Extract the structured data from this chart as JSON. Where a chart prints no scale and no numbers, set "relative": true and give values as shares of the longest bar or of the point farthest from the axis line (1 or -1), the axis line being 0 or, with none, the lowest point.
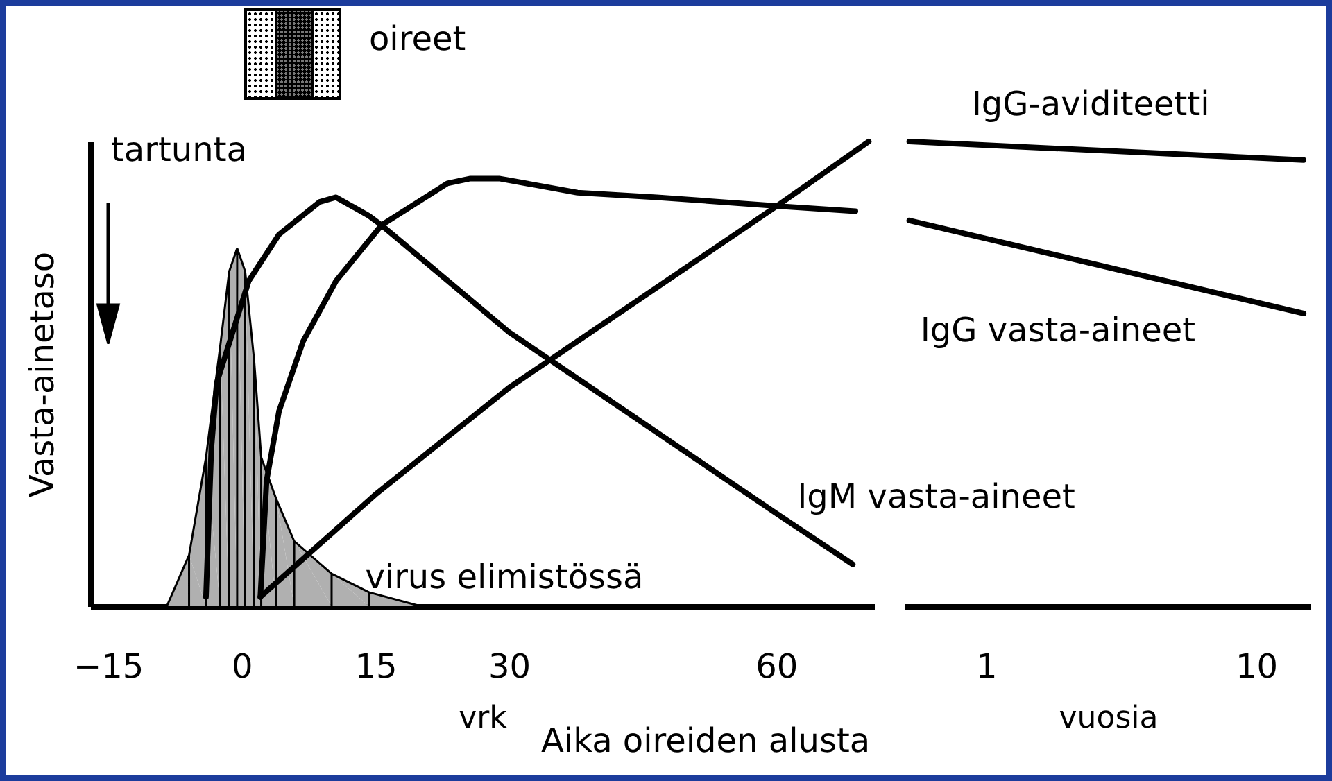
{
  "chart_data": [
    {
      "type": "line",
      "relative": true,
      "ylabel": "Vasta-ainetaso",
      "xlabel": "vrk",
      "xlim": [
        -17,
        71
      ],
      "xticks": [
        -15,
        0,
        15,
        30,
        60
      ],
      "legend": false,
      "grid": false,
      "annotations": [
        "tartunta",
        "oireet",
        "Aika oireiden alusta"
      ],
      "series": [
        {
          "name": "virus elimistössä",
          "type": "area",
          "color": "#b0b0b0",
          "x": [
            -8.4,
            -5.9,
            -4.0,
            -2.4,
            -1.4,
            -0.5,
            0.4,
            1.4,
            2.2,
            3.9,
            5.9,
            10.1,
            14.3,
            20.1
          ],
          "values": [
            0,
            0.11,
            0.32,
            0.56,
            0.72,
            0.77,
            0.72,
            0.53,
            0.32,
            0.23,
            0.14,
            0.07,
            0.03,
            0
          ]
        },
        {
          "name": "IgM vasta-aineet",
          "type": "line",
          "color": "#000000",
          "x": [
            -4.0,
            -3.4,
            -2.8,
            0.8,
            4.2,
            8.75,
            10.6,
            14.3,
            15.7,
            30,
            60,
            68.6
          ],
          "values": [
            0.02,
            0.34,
            0.48,
            0.7,
            0.8,
            0.87,
            0.88,
            0.84,
            0.82,
            0.59,
            0.2,
            0.09
          ]
        },
        {
          "type": "line",
          "color": "#000000",
          "x": [
            2.1,
            2.8,
            4.2,
            6.9,
            10.6,
            15.7,
            23.1,
            25.6,
            29,
            37.7,
            46.6,
            60.9,
            68.9
          ],
          "values": [
            0.02,
            0.27,
            0.42,
            0.57,
            0.7,
            0.82,
            0.91,
            0.92,
            0.92,
            0.89,
            0.88,
            0.86,
            0.85
          ]
        },
        {
          "type": "line",
          "color": "#000000",
          "x": [
            2.1,
            15,
            30,
            60,
            70.4
          ],
          "values": [
            0.02,
            0.24,
            0.47,
            0.86,
            1.0
          ]
        }
      ]
    },
    {
      "type": "line",
      "relative": true,
      "xlabel": "vuosia",
      "xlim": [
        0.5,
        16
      ],
      "xticks": [
        1,
        10
      ],
      "log": "x",
      "legend": false,
      "grid": false,
      "series": [
        {
          "name": "IgG-aviditeetti",
          "type": "line",
          "color": "#000000",
          "x": [
            0.52,
            15
          ],
          "values": [
            1.0,
            0.96
          ]
        },
        {
          "name": "IgG vasta-aineet",
          "type": "line",
          "color": "#000000",
          "x": [
            0.52,
            15
          ],
          "values": [
            0.83,
            0.63
          ]
        }
      ]
    }
  ]
}
